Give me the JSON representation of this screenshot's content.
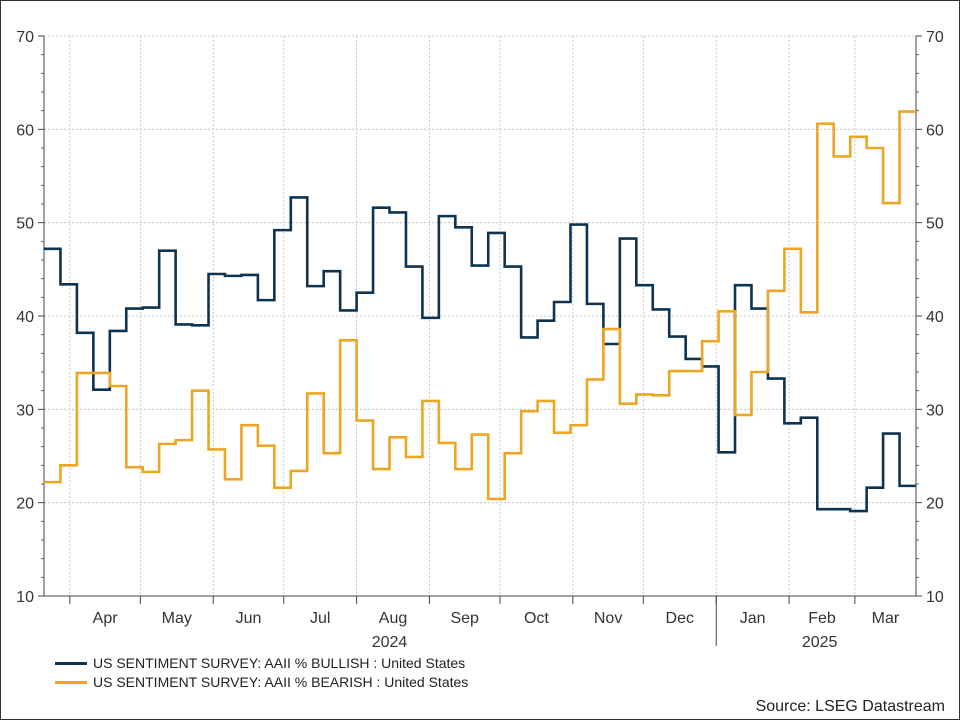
{
  "chart_data": {
    "type": "line",
    "x_axis": {
      "months": [
        {
          "label": "Apr",
          "date": "2024-04-01"
        },
        {
          "label": "May",
          "date": "2024-05-01"
        },
        {
          "label": "Jun",
          "date": "2024-06-01"
        },
        {
          "label": "Jul",
          "date": "2024-07-01"
        },
        {
          "label": "Aug",
          "date": "2024-08-01"
        },
        {
          "label": "Sep",
          "date": "2024-09-01"
        },
        {
          "label": "Oct",
          "date": "2024-10-01"
        },
        {
          "label": "Nov",
          "date": "2024-11-01"
        },
        {
          "label": "Dec",
          "date": "2024-12-01"
        },
        {
          "label": "Jan",
          "date": "2025-01-01"
        },
        {
          "label": "Feb",
          "date": "2025-02-01"
        },
        {
          "label": "Mar",
          "date": "2025-03-01"
        }
      ],
      "years": [
        {
          "label": "2024",
          "date": "2024-08-15"
        },
        {
          "label": "2025",
          "date": "2025-02-14"
        }
      ],
      "xlim": [
        "2024-03-21",
        "2025-03-27"
      ]
    },
    "y_axis": {
      "ylim": [
        10,
        70
      ],
      "ticks": [
        "10",
        "20",
        "30",
        "40",
        "50",
        "60",
        "70"
      ],
      "right_ticks": [
        "10",
        "20",
        "30",
        "40",
        "50",
        "60",
        "70"
      ]
    },
    "grid": true,
    "legend_position": "bottom-left",
    "series": [
      {
        "name": "US SENTIMENT SURVEY: AAII % BULLISH : United States",
        "color": "#0e3350",
        "step": true,
        "dates": [
          "2024-03-21",
          "2024-03-28",
          "2024-04-04",
          "2024-04-11",
          "2024-04-18",
          "2024-04-25",
          "2024-05-02",
          "2024-05-09",
          "2024-05-16",
          "2024-05-23",
          "2024-05-30",
          "2024-06-06",
          "2024-06-13",
          "2024-06-20",
          "2024-06-27",
          "2024-07-04",
          "2024-07-11",
          "2024-07-18",
          "2024-07-25",
          "2024-08-01",
          "2024-08-08",
          "2024-08-15",
          "2024-08-22",
          "2024-08-29",
          "2024-09-05",
          "2024-09-12",
          "2024-09-19",
          "2024-09-26",
          "2024-10-03",
          "2024-10-10",
          "2024-10-17",
          "2024-10-24",
          "2024-10-31",
          "2024-11-07",
          "2024-11-14",
          "2024-11-21",
          "2024-11-28",
          "2024-12-05",
          "2024-12-12",
          "2024-12-19",
          "2024-12-26",
          "2025-01-02",
          "2025-01-09",
          "2025-01-16",
          "2025-01-23",
          "2025-01-30",
          "2025-02-06",
          "2025-02-13",
          "2025-02-20",
          "2025-02-27",
          "2025-03-06",
          "2025-03-13",
          "2025-03-20",
          "2025-03-27"
        ],
        "values": [
          47.2,
          43.4,
          38.2,
          32.1,
          38.4,
          40.8,
          40.9,
          47.0,
          39.1,
          39.0,
          44.5,
          44.3,
          44.4,
          41.7,
          49.2,
          52.7,
          43.2,
          44.8,
          40.6,
          42.5,
          51.6,
          51.1,
          45.3,
          39.8,
          50.7,
          49.5,
          45.4,
          48.9,
          45.3,
          37.7,
          39.5,
          41.5,
          49.8,
          41.3,
          37.0,
          48.3,
          43.3,
          40.7,
          37.8,
          35.4,
          34.6,
          25.4,
          43.3,
          40.8,
          33.3,
          28.5,
          29.1,
          19.3,
          19.3,
          19.1,
          21.6,
          27.4,
          21.8,
          21.8
        ]
      },
      {
        "name": "US SENTIMENT SURVEY: AAII % BEARISH : United States",
        "color": "#eca624",
        "step": true,
        "dates": [
          "2024-03-21",
          "2024-03-28",
          "2024-04-04",
          "2024-04-11",
          "2024-04-18",
          "2024-04-25",
          "2024-05-02",
          "2024-05-09",
          "2024-05-16",
          "2024-05-23",
          "2024-05-30",
          "2024-06-06",
          "2024-06-13",
          "2024-06-20",
          "2024-06-27",
          "2024-07-04",
          "2024-07-11",
          "2024-07-18",
          "2024-07-25",
          "2024-08-01",
          "2024-08-08",
          "2024-08-15",
          "2024-08-22",
          "2024-08-29",
          "2024-09-05",
          "2024-09-12",
          "2024-09-19",
          "2024-09-26",
          "2024-10-03",
          "2024-10-10",
          "2024-10-17",
          "2024-10-24",
          "2024-10-31",
          "2024-11-07",
          "2024-11-14",
          "2024-11-21",
          "2024-11-28",
          "2024-12-05",
          "2024-12-12",
          "2024-12-19",
          "2024-12-26",
          "2025-01-02",
          "2025-01-09",
          "2025-01-16",
          "2025-01-23",
          "2025-01-30",
          "2025-02-06",
          "2025-02-13",
          "2025-02-20",
          "2025-02-27",
          "2025-03-06",
          "2025-03-13",
          "2025-03-20",
          "2025-03-27"
        ],
        "values": [
          22.2,
          24.0,
          33.9,
          33.9,
          32.5,
          23.8,
          23.3,
          26.3,
          26.7,
          32.0,
          25.7,
          22.5,
          28.3,
          26.1,
          21.6,
          23.4,
          31.7,
          25.3,
          37.4,
          28.8,
          23.6,
          27.0,
          24.9,
          30.9,
          26.4,
          23.6,
          27.3,
          20.4,
          25.3,
          29.8,
          30.9,
          27.5,
          28.3,
          33.2,
          38.6,
          30.6,
          31.6,
          31.5,
          34.1,
          34.1,
          37.3,
          40.5,
          29.4,
          34.0,
          42.7,
          47.2,
          40.4,
          60.6,
          57.1,
          59.2,
          58.0,
          52.1,
          61.9,
          61.9
        ]
      }
    ]
  },
  "source": "Source: LSEG Datastream"
}
